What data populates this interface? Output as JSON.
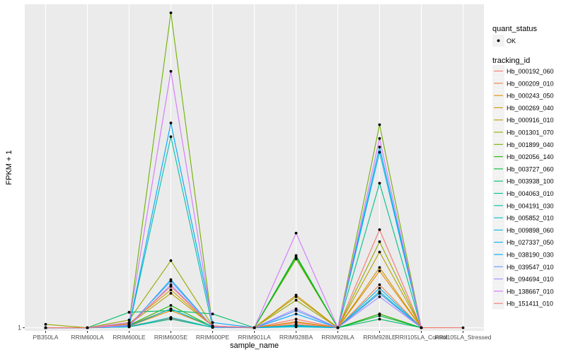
{
  "chart_data": {
    "type": "line",
    "xlabel": "sample_name",
    "ylabel": "FPKM + 1",
    "categories": [
      "PB350LA",
      "RRIM600LA",
      "RRIM600LE",
      "RRIM600SE",
      "RRIM600PE",
      "RRIM901LA",
      "RRIM928BA",
      "RRIM928LA",
      "RRIM928LE",
      "RRII105LA_Control",
      "RRII105LA_Stressed"
    ],
    "yticks": [
      {
        "label": "1",
        "value": 1
      }
    ],
    "ylim": [
      0.82,
      19.8
    ],
    "grid": true,
    "legend_position": "right",
    "legend_point": {
      "title": "quant_status",
      "label": "OK"
    },
    "legend_line_title": "tracking_id",
    "series": [
      {
        "name": "Hb_000192_060",
        "color": "#F8766D",
        "values": [
          1.0,
          1.0,
          1.1,
          1.55,
          1.02,
          1.0,
          1.2,
          1.0,
          1.8,
          1.0,
          null
        ]
      },
      {
        "name": "Hb_000209_010",
        "color": "#EE8043",
        "values": [
          1.0,
          1.0,
          1.15,
          2.1,
          1.05,
          1.0,
          1.3,
          1.0,
          3.5,
          1.0,
          null
        ]
      },
      {
        "name": "Hb_000243_050",
        "color": "#E18A00",
        "values": [
          1.0,
          1.0,
          1.1,
          2.0,
          1.05,
          1.0,
          1.35,
          1.0,
          4.3,
          1.0,
          null
        ]
      },
      {
        "name": "Hb_000269_040",
        "color": "#CF9400",
        "values": [
          1.0,
          1.0,
          1.25,
          3.2,
          1.1,
          1.0,
          2.9,
          1.0,
          4.5,
          1.0,
          null
        ]
      },
      {
        "name": "Hb_000916_010",
        "color": "#B79F00",
        "values": [
          1.0,
          1.0,
          1.2,
          3.0,
          1.1,
          1.0,
          2.8,
          1.0,
          5.4,
          1.0,
          null
        ]
      },
      {
        "name": "Hb_001301_070",
        "color": "#99A800",
        "values": [
          1.2,
          1.0,
          1.45,
          4.9,
          1.1,
          1.0,
          2.6,
          1.0,
          6.0,
          1.0,
          null
        ]
      },
      {
        "name": "Hb_001899_040",
        "color": "#70B000",
        "values": [
          1.0,
          1.0,
          1.3,
          19.3,
          1.05,
          1.0,
          5.0,
          1.0,
          12.8,
          1.0,
          null
        ]
      },
      {
        "name": "Hb_002056_140",
        "color": "#1FB600",
        "values": [
          1.0,
          1.0,
          1.15,
          2.3,
          1.05,
          1.0,
          5.1,
          1.0,
          1.8,
          1.0,
          null
        ]
      },
      {
        "name": "Hb_003727_060",
        "color": "#00BA38",
        "values": [
          1.0,
          1.0,
          1.1,
          2.1,
          1.05,
          1.0,
          5.2,
          1.0,
          1.7,
          1.0,
          null
        ]
      },
      {
        "name": "Hb_003938_100",
        "color": "#00BD6A",
        "values": [
          1.0,
          1.0,
          1.9,
          2.0,
          1.8,
          1.0,
          1.1,
          1.0,
          1.5,
          1.0,
          null
        ]
      },
      {
        "name": "Hb_004063_010",
        "color": "#00BF8C",
        "values": [
          1.0,
          1.0,
          1.05,
          1.5,
          1.02,
          1.0,
          1.15,
          1.0,
          9.4,
          1.0,
          null
        ]
      },
      {
        "name": "Hb_004191_030",
        "color": "#00C0AA",
        "values": [
          1.0,
          1.0,
          1.05,
          12.1,
          1.02,
          1.0,
          1.1,
          1.0,
          3.0,
          1.0,
          null
        ]
      },
      {
        "name": "Hb_005852_010",
        "color": "#00BDC5",
        "values": [
          1.0,
          1.0,
          1.05,
          1.6,
          1.02,
          1.0,
          1.05,
          1.0,
          3.1,
          1.0,
          null
        ]
      },
      {
        "name": "Hb_009898_060",
        "color": "#00B8DC",
        "values": [
          1.0,
          1.0,
          1.1,
          2.1,
          1.05,
          1.0,
          2.0,
          1.0,
          11.2,
          1.0,
          null
        ]
      },
      {
        "name": "Hb_027337_050",
        "color": "#00AFEF",
        "values": [
          1.0,
          1.0,
          1.1,
          3.8,
          1.05,
          1.0,
          1.1,
          1.0,
          3.3,
          1.0,
          null
        ]
      },
      {
        "name": "Hb_038190_030",
        "color": "#00A5FF",
        "values": [
          1.0,
          1.0,
          1.1,
          12.9,
          1.3,
          1.0,
          1.8,
          1.0,
          11.5,
          1.0,
          null
        ]
      },
      {
        "name": "Hb_039547_010",
        "color": "#619CFF",
        "values": [
          1.0,
          1.0,
          1.15,
          3.7,
          1.05,
          1.0,
          2.0,
          1.0,
          3.0,
          1.0,
          null
        ]
      },
      {
        "name": "Hb_094694_010",
        "color": "#A58AFF",
        "values": [
          1.0,
          1.0,
          1.1,
          3.5,
          1.05,
          1.0,
          2.1,
          1.0,
          2.8,
          1.0,
          null
        ]
      },
      {
        "name": "Hb_138667_010",
        "color": "#D376FF",
        "values": [
          1.0,
          1.0,
          1.3,
          15.9,
          1.1,
          1.0,
          6.5,
          1.0,
          12.0,
          1.0,
          null
        ]
      },
      {
        "name": "Hb_151411_010",
        "color": "#F8766D",
        "values": [
          1.0,
          1.0,
          1.2,
          3.4,
          1.1,
          1.0,
          1.5,
          1.0,
          6.7,
          1.0,
          1.0
        ]
      }
    ]
  }
}
